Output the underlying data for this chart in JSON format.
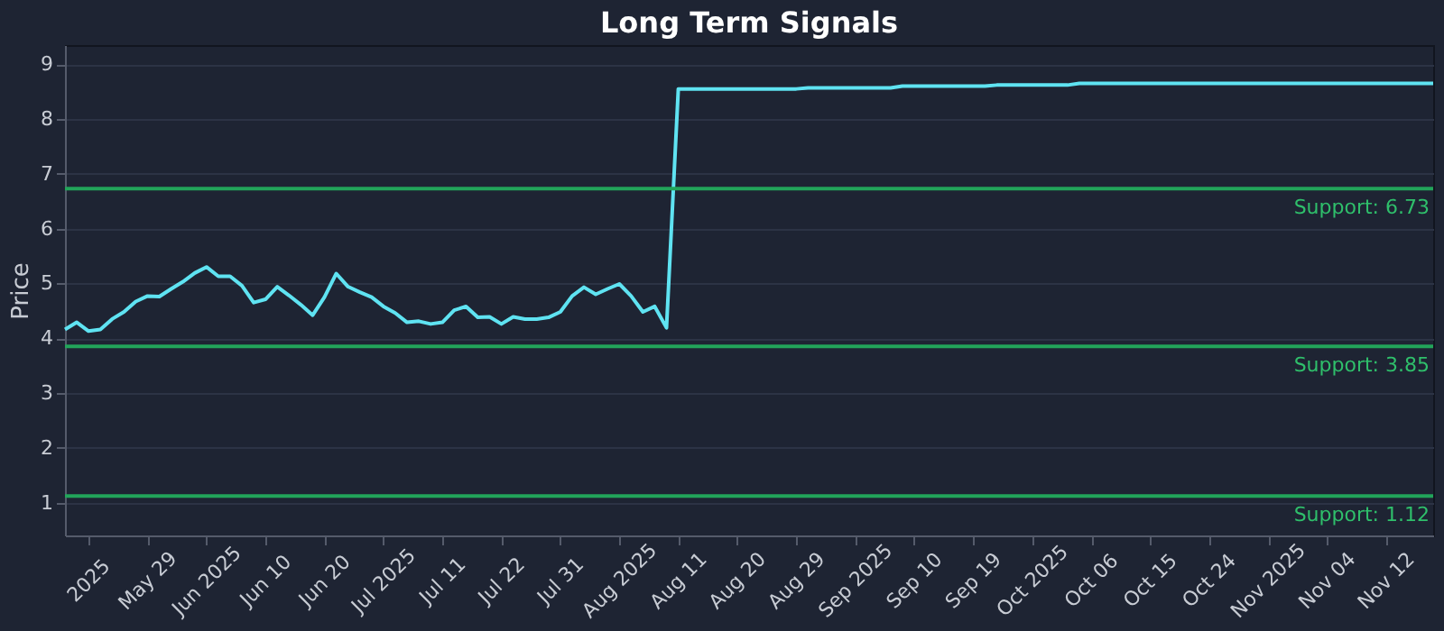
{
  "chart_data": {
    "type": "line",
    "title": "Long Term Signals",
    "ylabel": "Price",
    "categories": [
      null,
      null,
      "2025",
      null,
      null,
      null,
      null,
      "May 29",
      null,
      null,
      null,
      null,
      "Jun 2025",
      null,
      null,
      null,
      null,
      "Jun 10",
      null,
      null,
      null,
      null,
      "Jun 20",
      null,
      null,
      null,
      null,
      "Jul 2025",
      null,
      null,
      null,
      null,
      "Jul 11",
      null,
      null,
      null,
      null,
      "Jul 22",
      null,
      null,
      null,
      null,
      "Jul 31",
      null,
      null,
      null,
      null,
      "Aug 2025",
      null,
      null,
      null,
      null,
      "Aug 11",
      null,
      null,
      null,
      null,
      "Aug 20",
      null,
      null,
      null,
      null,
      "Aug 29",
      null,
      null,
      null,
      null,
      "Sep 2025",
      null,
      null,
      null,
      null,
      "Sep 10",
      null,
      null,
      null,
      null,
      "Sep 19",
      null,
      null,
      null,
      null,
      "Oct 2025",
      null,
      null,
      null,
      null,
      "Oct 06",
      null,
      null,
      null,
      null,
      "Oct 15",
      null,
      null,
      null,
      null,
      "Oct 24",
      null,
      null,
      null,
      null,
      "Nov 2025",
      null,
      null,
      null,
      null,
      "Nov 04",
      null,
      null,
      null,
      null,
      "Nov 12",
      null,
      null,
      null,
      null
    ],
    "series": [
      {
        "color": "#5fe3f2",
        "values": [
          4.16,
          4.29,
          4.13,
          4.16,
          4.35,
          4.48,
          4.67,
          4.77,
          4.76,
          4.9,
          5.03,
          5.19,
          5.3,
          5.13,
          5.13,
          4.96,
          4.65,
          4.71,
          4.94,
          4.78,
          4.61,
          4.42,
          4.75,
          5.18,
          4.94,
          4.84,
          4.75,
          4.58,
          4.46,
          4.29,
          4.31,
          4.26,
          4.29,
          4.51,
          4.58,
          4.38,
          4.39,
          4.26,
          4.39,
          4.35,
          4.35,
          4.38,
          4.48,
          4.77,
          4.93,
          4.8,
          4.9,
          4.99,
          4.77,
          4.48,
          4.58,
          4.19,
          8.55,
          8.55,
          8.55,
          8.55,
          8.55,
          8.55,
          8.55,
          8.55,
          8.55,
          8.55,
          8.55,
          8.57,
          8.57,
          8.57,
          8.57,
          8.57,
          8.57,
          8.57,
          8.57,
          8.6,
          8.6,
          8.6,
          8.6,
          8.6,
          8.6,
          8.6,
          8.6,
          8.62,
          8.62,
          8.62,
          8.62,
          8.62,
          8.62,
          8.62,
          8.65,
          8.65,
          8.65,
          8.65,
          8.65,
          8.65,
          8.65,
          8.65,
          8.65,
          8.65,
          8.65,
          8.65,
          8.65,
          8.65,
          8.65,
          8.65,
          8.65,
          8.65,
          8.65,
          8.65,
          8.65,
          8.65,
          8.65,
          8.65,
          8.65,
          8.65,
          8.65,
          8.65,
          8.65,
          8.65,
          8.65
        ]
      }
    ],
    "ylim": [
      0.4,
      9.35
    ],
    "yticks": [
      1,
      2,
      3,
      4,
      5,
      6,
      7,
      8,
      9
    ],
    "grid": "y",
    "ref_lines": [
      {
        "axis": "y",
        "value": 6.73,
        "label": "Support: 6.73",
        "color": "#22a45a"
      },
      {
        "axis": "y",
        "value": 3.85,
        "label": "Support: 3.85",
        "color": "#22a45a"
      },
      {
        "axis": "y",
        "value": 1.12,
        "label": "Support: 1.12",
        "color": "#22a45a"
      }
    ]
  }
}
